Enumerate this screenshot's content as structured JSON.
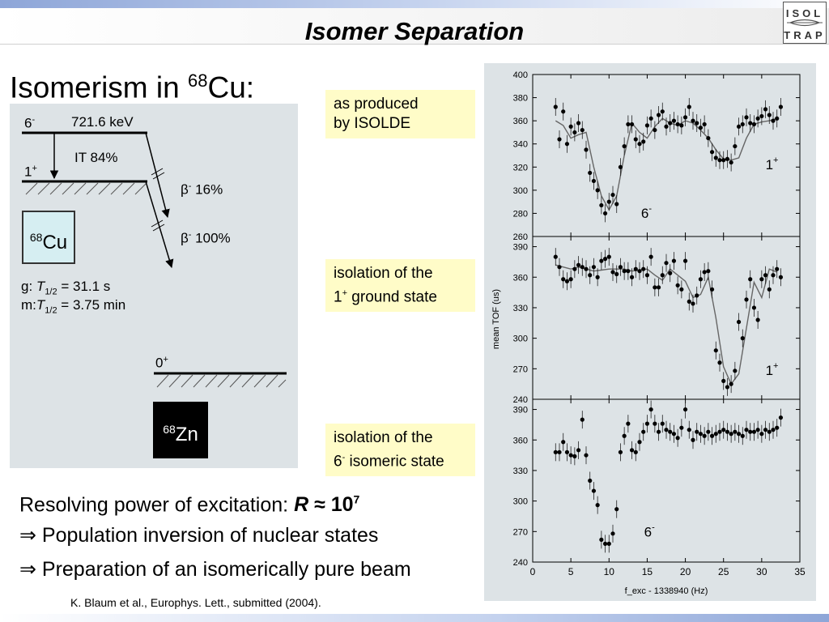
{
  "slide": {
    "title": "Isomer Separation",
    "logo": {
      "line1": "ISOL",
      "line2": "TRAP"
    },
    "heading": {
      "text": "Isomerism in ",
      "mass": "68",
      "element": "Cu:"
    },
    "scheme": {
      "level_6_label": "6",
      "level_6_parity": "-",
      "level_6_energy": "721.6 keV",
      "it_label": "IT 84%",
      "level_1_label": "1",
      "level_1_parity": "+",
      "beta_16_symbol": "β",
      "beta_16_text": " 16%",
      "beta_100_symbol": "β",
      "beta_100_text": " 100%",
      "cu_mass": "68",
      "cu_symbol": "Cu",
      "g_prefix": "g:",
      "m_prefix": "m:",
      "half_life_t": "T",
      "half_life_sub": "1/2",
      "g_half_life": " = 31.1 s",
      "m_half_life": " = 3.75 min",
      "zero_label": "0",
      "zero_parity": "+",
      "zn_mass": "68",
      "zn_symbol": "Zn"
    },
    "notes": [
      {
        "line1": "as produced",
        "line2": "by ISOLDE"
      },
      {
        "line1": "isolation of the",
        "line2a": "1",
        "sup": "+",
        "line2b": " ground state"
      },
      {
        "line1": "isolation of the",
        "line2a": "6",
        "sup": "-",
        "line2b": " isomeric state"
      }
    ],
    "bottom": {
      "resolving_text": "Resolving power of excitation: ",
      "resolving_symbol": "R",
      "resolving_value": " ≈ 10",
      "resolving_exp": "7",
      "implies": "⇒",
      "line2": " Population inversion of nuclear states",
      "line3": " Preparation of an isomerically pure beam"
    },
    "reference": "K. Blaum et al., Europhys. Lett., submitted (2004)."
  },
  "chart_data": {
    "type": "scatter",
    "xlabel": "f_exc - 1338940 (Hz)",
    "ylabel": "mean TOF (us)",
    "xlim": [
      0,
      35
    ],
    "xticks": [
      0,
      5,
      10,
      15,
      20,
      25,
      30,
      35
    ],
    "panels": [
      {
        "ylim": [
          260,
          400
        ],
        "yticks": [
          260,
          280,
          300,
          320,
          340,
          360,
          380,
          400
        ],
        "annotations": [
          {
            "text": "1",
            "sup": "+",
            "x": 30.5,
            "y": 318
          },
          {
            "text": "6",
            "sup": "-",
            "x": 14.2,
            "y": 276
          }
        ],
        "x": [
          3.0,
          3.5,
          4.0,
          4.5,
          5.0,
          5.5,
          6.0,
          6.5,
          7.0,
          7.5,
          8.0,
          8.5,
          9.0,
          9.5,
          10.0,
          10.5,
          11.0,
          11.5,
          12.0,
          12.5,
          13.0,
          13.5,
          14.0,
          14.5,
          15.0,
          15.5,
          16.0,
          16.5,
          17.0,
          17.5,
          18.0,
          18.5,
          19.0,
          19.5,
          20.0,
          20.5,
          21.0,
          21.5,
          22.0,
          22.5,
          23.0,
          23.5,
          24.0,
          24.5,
          25.0,
          25.5,
          26.0,
          26.5,
          27.0,
          27.5,
          28.0,
          28.5,
          29.0,
          29.5,
          30.0,
          30.5,
          31.0,
          31.5,
          32.0,
          32.5
        ],
        "y": [
          372,
          344,
          368,
          340,
          355,
          350,
          358,
          352,
          335,
          315,
          308,
          300,
          287,
          280,
          290,
          296,
          288,
          320,
          338,
          357,
          357,
          344,
          340,
          342,
          356,
          362,
          352,
          365,
          368,
          355,
          358,
          360,
          357,
          356,
          363,
          372,
          360,
          358,
          354,
          357,
          345,
          333,
          328,
          326,
          326,
          327,
          324,
          338,
          355,
          357,
          363,
          358,
          357,
          362,
          364,
          370,
          365,
          360,
          362,
          372
        ],
        "curve": [
          [
            3,
            360
          ],
          [
            4,
            356
          ],
          [
            5,
            345
          ],
          [
            6,
            348
          ],
          [
            7,
            350
          ],
          [
            8,
            320
          ],
          [
            9,
            295
          ],
          [
            10,
            283
          ],
          [
            11,
            295
          ],
          [
            12,
            330
          ],
          [
            13,
            358
          ],
          [
            14,
            350
          ],
          [
            15,
            345
          ],
          [
            16,
            355
          ],
          [
            17,
            362
          ],
          [
            18,
            358
          ],
          [
            19,
            356
          ],
          [
            20,
            360
          ],
          [
            21,
            358
          ],
          [
            22,
            352
          ],
          [
            23,
            345
          ],
          [
            24,
            335
          ],
          [
            25,
            327
          ],
          [
            26,
            326
          ],
          [
            27,
            328
          ],
          [
            28,
            345
          ],
          [
            29,
            357
          ],
          [
            30,
            359
          ],
          [
            31,
            360
          ],
          [
            32,
            362
          ]
        ]
      },
      {
        "ylim": [
          240,
          400
        ],
        "yticks": [
          240,
          270,
          300,
          330,
          360,
          390
        ],
        "annotations": [
          {
            "text": "1",
            "sup": "+",
            "x": 30.5,
            "y": 264
          }
        ],
        "x": [
          3.0,
          3.5,
          4.0,
          4.5,
          5.0,
          5.5,
          6.0,
          6.5,
          7.0,
          7.5,
          8.0,
          8.5,
          9.0,
          9.5,
          10.0,
          10.5,
          11.0,
          11.5,
          12.0,
          12.5,
          13.0,
          13.5,
          14.0,
          14.5,
          15.0,
          15.5,
          16.0,
          16.5,
          17.0,
          17.5,
          18.0,
          18.5,
          19.0,
          19.5,
          20.0,
          20.5,
          21.0,
          21.5,
          22.0,
          22.5,
          23.0,
          23.5,
          24.0,
          24.5,
          25.0,
          25.5,
          26.0,
          26.5,
          27.0,
          27.5,
          28.0,
          28.5,
          29.0,
          29.5,
          30.0,
          30.5,
          31.0,
          31.5,
          32.0,
          32.5
        ],
        "y": [
          380,
          370,
          358,
          356,
          358,
          368,
          372,
          370,
          368,
          362,
          370,
          360,
          376,
          378,
          380,
          365,
          363,
          370,
          366,
          366,
          360,
          368,
          366,
          368,
          362,
          380,
          350,
          350,
          362,
          374,
          364,
          376,
          352,
          348,
          376,
          336,
          334,
          342,
          358,
          365,
          366,
          348,
          288,
          276,
          258,
          252,
          255,
          268,
          316,
          300,
          338,
          358,
          330,
          318,
          358,
          362,
          348,
          362,
          368,
          360
        ],
        "curve": [
          [
            3,
            372
          ],
          [
            4,
            370
          ],
          [
            5,
            368
          ],
          [
            6,
            370
          ],
          [
            7,
            368
          ],
          [
            8,
            366
          ],
          [
            9,
            367
          ],
          [
            10,
            368
          ],
          [
            11,
            368
          ],
          [
            12,
            368
          ],
          [
            13,
            366
          ],
          [
            14,
            367
          ],
          [
            15,
            368
          ],
          [
            16,
            362
          ],
          [
            17,
            357
          ],
          [
            18,
            368
          ],
          [
            19,
            362
          ],
          [
            20,
            356
          ],
          [
            21,
            340
          ],
          [
            22,
            343
          ],
          [
            23,
            360
          ],
          [
            24,
            320
          ],
          [
            25,
            272
          ],
          [
            26,
            255
          ],
          [
            27,
            265
          ],
          [
            28,
            310
          ],
          [
            29,
            355
          ],
          [
            30,
            340
          ],
          [
            31,
            368
          ],
          [
            32,
            365
          ]
        ]
      },
      {
        "ylim": [
          240,
          400
        ],
        "yticks": [
          240,
          270,
          300,
          330,
          360,
          390
        ],
        "annotations": [
          {
            "text": "6",
            "sup": "-",
            "x": 14.6,
            "y": 265
          }
        ],
        "x": [
          3.0,
          3.5,
          4.0,
          4.5,
          5.0,
          5.5,
          6.0,
          6.5,
          7.0,
          7.5,
          8.0,
          8.5,
          9.0,
          9.5,
          10.0,
          10.5,
          11.0,
          11.5,
          12.0,
          12.5,
          13.0,
          13.5,
          14.0,
          14.5,
          15.0,
          15.5,
          16.0,
          16.5,
          17.0,
          17.5,
          18.0,
          18.5,
          19.0,
          19.5,
          20.0,
          20.5,
          21.0,
          21.5,
          22.0,
          22.5,
          23.0,
          23.5,
          24.0,
          24.5,
          25.0,
          25.5,
          26.0,
          26.5,
          27.0,
          27.5,
          28.0,
          28.5,
          29.0,
          29.5,
          30.0,
          30.5,
          31.0,
          31.5,
          32.0,
          32.5
        ],
        "y": [
          348,
          348,
          358,
          348,
          345,
          344,
          350,
          380,
          345,
          320,
          310,
          296,
          262,
          258,
          258,
          268,
          292,
          348,
          364,
          376,
          350,
          348,
          358,
          368,
          376,
          390,
          376,
          368,
          376,
          370,
          368,
          366,
          362,
          372,
          390,
          370,
          360,
          368,
          366,
          364,
          368,
          364,
          366,
          368,
          370,
          368,
          366,
          368,
          366,
          364,
          370,
          368,
          368,
          370,
          366,
          370,
          368,
          370,
          372,
          382
        ]
      }
    ]
  }
}
